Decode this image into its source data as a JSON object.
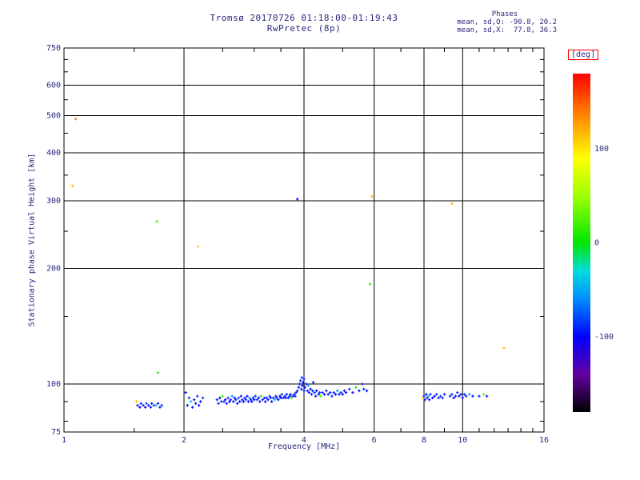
{
  "header": {
    "title_line1": "Tromsø 20170726 01:18:00-01:19:43",
    "title_line2": "RwPretec (8p)",
    "stats_title": "Phases",
    "stats_line1": "mean, sd,O: -90.8, 20.2",
    "stats_line2": "mean, sd,X:  77.8, 36.3"
  },
  "colors": {
    "text": "#27277e",
    "axis": "#000000",
    "deg_box_border": "#ff0000",
    "background": "#ffffff"
  },
  "chart_data": {
    "type": "scatter",
    "title": "Tromsø 20170726 01:18:00-01:19:43 RwPretec (8p)",
    "xlabel": "Frequency [MHz]",
    "ylabel": "Stationary phase Virtual Height [km]",
    "x_scale": "log",
    "y_scale": "log",
    "xlim": [
      1,
      16
    ],
    "ylim": [
      75,
      750
    ],
    "x_ticks": [
      1,
      2,
      4,
      6,
      8,
      10,
      16
    ],
    "x_minor_ticks": [
      1.5,
      2.5,
      3,
      3.5,
      5,
      7,
      9,
      11,
      12,
      13,
      14,
      15
    ],
    "y_ticks": [
      75,
      100,
      200,
      300,
      400,
      500,
      600,
      750
    ],
    "y_minor_ticks": [
      80,
      90,
      150,
      250,
      350,
      450,
      550,
      650,
      700
    ],
    "grid": true,
    "colorbar": {
      "label": "[deg]",
      "unit": "deg",
      "range": [
        -180,
        180
      ],
      "ticks": [
        100,
        0,
        -100
      ],
      "position": "right",
      "stops": [
        [
          -180,
          "#000000"
        ],
        [
          -140,
          "#6400a0"
        ],
        [
          -100,
          "#0000ff"
        ],
        [
          -60,
          "#008cff"
        ],
        [
          -30,
          "#00dcdc"
        ],
        [
          0,
          "#00e600"
        ],
        [
          50,
          "#a0ff00"
        ],
        [
          90,
          "#ffff00"
        ],
        [
          130,
          "#ff9600"
        ],
        [
          160,
          "#ff3c00"
        ],
        [
          180,
          "#ff0000"
        ]
      ]
    },
    "points_format": [
      "frequency_MHz",
      "virtual_height_km",
      "phase_deg"
    ],
    "points": [
      [
        1.07,
        490,
        142
      ],
      [
        1.05,
        328,
        115
      ],
      [
        1.52,
        90,
        115
      ],
      [
        1.53,
        88,
        -95
      ],
      [
        1.55,
        87,
        -102
      ],
      [
        1.56,
        89,
        -88
      ],
      [
        1.58,
        88,
        -95
      ],
      [
        1.6,
        87,
        -110
      ],
      [
        1.61,
        89,
        -80
      ],
      [
        1.63,
        88,
        -95
      ],
      [
        1.65,
        87,
        -100
      ],
      [
        1.66,
        89,
        -92
      ],
      [
        1.68,
        88,
        -85
      ],
      [
        1.7,
        88,
        -50
      ],
      [
        1.72,
        89,
        -98
      ],
      [
        1.74,
        87,
        -95
      ],
      [
        1.76,
        88,
        -90
      ],
      [
        1.71,
        265,
        25
      ],
      [
        1.72,
        107,
        12
      ],
      [
        2.02,
        95,
        -95
      ],
      [
        2.04,
        88,
        -100
      ],
      [
        2.06,
        92,
        -88
      ],
      [
        2.08,
        90,
        -45
      ],
      [
        2.1,
        87,
        -95
      ],
      [
        2.12,
        91,
        -108
      ],
      [
        2.14,
        89,
        -92
      ],
      [
        2.16,
        93,
        -85
      ],
      [
        2.18,
        88,
        -98
      ],
      [
        2.2,
        90,
        -95
      ],
      [
        2.23,
        92,
        -90
      ],
      [
        2.17,
        228,
        110
      ],
      [
        2.42,
        91,
        -95
      ],
      [
        2.44,
        89,
        -90
      ],
      [
        2.46,
        92,
        -100
      ],
      [
        2.48,
        90,
        -85
      ],
      [
        2.5,
        93,
        18
      ],
      [
        2.52,
        90,
        -95
      ],
      [
        2.54,
        91,
        -105
      ],
      [
        2.56,
        89,
        -95
      ],
      [
        2.58,
        92,
        -90
      ],
      [
        2.6,
        90,
        -100
      ],
      [
        2.62,
        91,
        -95
      ],
      [
        2.64,
        93,
        -55
      ],
      [
        2.66,
        90,
        -95
      ],
      [
        2.68,
        92,
        -100
      ],
      [
        2.7,
        91,
        -90
      ],
      [
        2.72,
        89,
        -95
      ],
      [
        2.74,
        92,
        -85
      ],
      [
        2.76,
        90,
        -100
      ],
      [
        2.78,
        93,
        -95
      ],
      [
        2.8,
        91,
        -92
      ],
      [
        2.82,
        90,
        -98
      ],
      [
        2.84,
        92,
        -95
      ],
      [
        2.86,
        91,
        -88
      ],
      [
        2.88,
        93,
        -100
      ],
      [
        2.9,
        90,
        -95
      ],
      [
        2.92,
        92,
        -50
      ],
      [
        2.94,
        91,
        -95
      ],
      [
        2.96,
        90,
        -105
      ],
      [
        2.98,
        92,
        -90
      ],
      [
        3.0,
        91,
        -95
      ],
      [
        3.02,
        93,
        -95
      ],
      [
        3.05,
        91,
        -90
      ],
      [
        3.08,
        92,
        -100
      ],
      [
        3.1,
        90,
        -95
      ],
      [
        3.12,
        93,
        12
      ],
      [
        3.15,
        91,
        -95
      ],
      [
        3.18,
        92,
        -88
      ],
      [
        3.2,
        90,
        -95
      ],
      [
        3.22,
        92,
        -100
      ],
      [
        3.25,
        91,
        -95
      ],
      [
        3.28,
        93,
        -90
      ],
      [
        3.3,
        92,
        -95
      ],
      [
        3.32,
        90,
        -105
      ],
      [
        3.35,
        92,
        -95
      ],
      [
        3.38,
        91,
        -45
      ],
      [
        3.4,
        93,
        -95
      ],
      [
        3.42,
        92,
        -90
      ],
      [
        3.45,
        91,
        -95
      ],
      [
        3.48,
        93,
        -100
      ],
      [
        3.5,
        92,
        -95
      ],
      [
        3.52,
        94,
        -85
      ],
      [
        3.55,
        92,
        -95
      ],
      [
        3.58,
        93,
        -90
      ],
      [
        3.6,
        92,
        -98
      ],
      [
        3.62,
        94,
        -95
      ],
      [
        3.65,
        92,
        -90
      ],
      [
        3.68,
        93,
        -100
      ],
      [
        3.7,
        94,
        -95
      ],
      [
        3.72,
        92,
        22
      ],
      [
        3.75,
        93,
        -95
      ],
      [
        3.78,
        94,
        -88
      ],
      [
        3.8,
        93,
        -95
      ],
      [
        3.85,
        303,
        -95
      ],
      [
        3.82,
        95,
        -95
      ],
      [
        3.85,
        96,
        -90
      ],
      [
        3.88,
        98,
        -100
      ],
      [
        3.9,
        100,
        -95
      ],
      [
        3.92,
        102,
        -90
      ],
      [
        3.94,
        97,
        -95
      ],
      [
        3.95,
        104,
        -85
      ],
      [
        3.96,
        99,
        -100
      ],
      [
        3.98,
        101,
        -95
      ],
      [
        4.0,
        103,
        -90
      ],
      [
        4.0,
        96,
        -95
      ],
      [
        4.02,
        98,
        -105
      ],
      [
        4.05,
        100,
        -95
      ],
      [
        4.08,
        96,
        -90
      ],
      [
        4.1,
        99,
        -55
      ],
      [
        4.12,
        95,
        -95
      ],
      [
        4.15,
        97,
        -100
      ],
      [
        4.18,
        94,
        -95
      ],
      [
        4.2,
        96,
        -90
      ],
      [
        4.22,
        101,
        -95
      ],
      [
        4.25,
        95,
        -88
      ],
      [
        4.28,
        93,
        -95
      ],
      [
        4.3,
        96,
        -100
      ],
      [
        4.35,
        94,
        -95
      ],
      [
        4.38,
        95,
        -90
      ],
      [
        4.4,
        93,
        25
      ],
      [
        4.45,
        95,
        -95
      ],
      [
        4.5,
        94,
        -100
      ],
      [
        4.55,
        96,
        -90
      ],
      [
        4.6,
        94,
        -95
      ],
      [
        4.65,
        95,
        -95
      ],
      [
        4.7,
        93,
        -88
      ],
      [
        4.75,
        95,
        -95
      ],
      [
        4.8,
        94,
        -100
      ],
      [
        4.85,
        96,
        -60
      ],
      [
        4.9,
        94,
        -95
      ],
      [
        4.95,
        95,
        -90
      ],
      [
        5.0,
        94,
        -95
      ],
      [
        5.05,
        96,
        -95
      ],
      [
        5.1,
        95,
        -100
      ],
      [
        5.2,
        97,
        -90
      ],
      [
        5.3,
        95,
        -95
      ],
      [
        5.4,
        98,
        8
      ],
      [
        5.5,
        96,
        -95
      ],
      [
        5.6,
        100,
        -90
      ],
      [
        5.65,
        97,
        -90
      ],
      [
        5.75,
        96,
        -95
      ],
      [
        5.86,
        182,
        15
      ],
      [
        5.92,
        308,
        110
      ],
      [
        7.95,
        92,
        108
      ],
      [
        8.0,
        93,
        -95
      ],
      [
        8.05,
        91,
        -88
      ],
      [
        8.1,
        94,
        -100
      ],
      [
        8.15,
        92,
        -95
      ],
      [
        8.2,
        93,
        -48
      ],
      [
        8.25,
        91,
        -95
      ],
      [
        8.3,
        94,
        -90
      ],
      [
        8.4,
        92,
        -96
      ],
      [
        8.5,
        93,
        -102
      ],
      [
        8.6,
        94,
        -88
      ],
      [
        8.7,
        92,
        -95
      ],
      [
        8.8,
        93,
        -82
      ],
      [
        8.9,
        92,
        -95
      ],
      [
        9.0,
        94,
        -92
      ],
      [
        9.4,
        295,
        112
      ],
      [
        9.3,
        93,
        -95
      ],
      [
        9.4,
        94,
        -88
      ],
      [
        9.5,
        92,
        -100
      ],
      [
        9.6,
        93,
        -95
      ],
      [
        9.7,
        95,
        -90
      ],
      [
        9.8,
        93,
        -96
      ],
      [
        9.9,
        94,
        -102
      ],
      [
        10.0,
        92,
        -95
      ],
      [
        10.1,
        94,
        -88
      ],
      [
        10.2,
        93,
        -95
      ],
      [
        10.4,
        94,
        -52
      ],
      [
        10.6,
        93,
        -95
      ],
      [
        11.0,
        93,
        -95
      ],
      [
        11.3,
        94,
        25
      ],
      [
        11.5,
        93,
        -92
      ],
      [
        12.7,
        124,
        115
      ]
    ]
  }
}
